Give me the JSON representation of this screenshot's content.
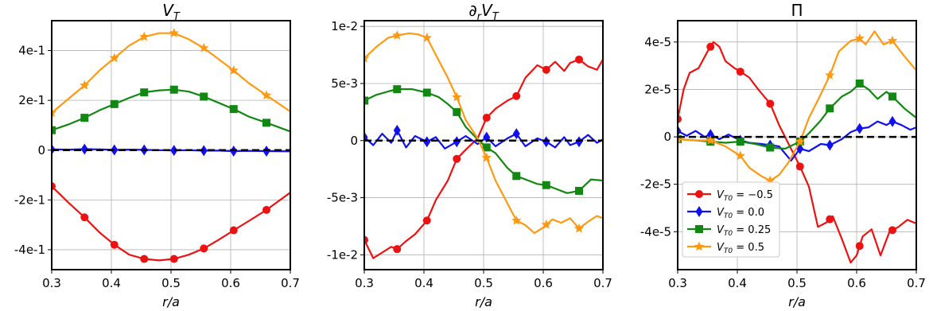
{
  "chart_data": [
    {
      "type": "line",
      "title": "V_T",
      "xlabel": "r/a",
      "xlim": [
        0.3,
        0.7
      ],
      "ylim": [
        -0.48,
        0.52
      ],
      "xticks": [
        0.3,
        0.4,
        0.5,
        0.6,
        0.7
      ],
      "xtick_labels": [
        "0.3",
        "0.4",
        "0.5",
        "0.6",
        "0.7"
      ],
      "yticks": [
        -0.4,
        -0.2,
        0,
        0.2,
        0.4
      ],
      "ytick_labels": [
        "-4e-1",
        "-2e-1",
        "0",
        "2e-1",
        "4e-1"
      ],
      "grid": true,
      "zero_line": 0,
      "series": [
        {
          "name": "V_T0 = -0.5",
          "color": "#ee1111",
          "marker": "circle",
          "x": [
            0.3,
            0.33,
            0.355,
            0.38,
            0.405,
            0.43,
            0.455,
            0.48,
            0.505,
            0.53,
            0.555,
            0.58,
            0.605,
            0.63,
            0.66,
            0.7
          ],
          "y": [
            -0.145,
            -0.215,
            -0.27,
            -0.33,
            -0.38,
            -0.42,
            -0.437,
            -0.443,
            -0.437,
            -0.42,
            -0.395,
            -0.36,
            -0.322,
            -0.285,
            -0.24,
            -0.17
          ],
          "markers_x": [
            0.3,
            0.355,
            0.405,
            0.455,
            0.505,
            0.555,
            0.605,
            0.66
          ]
        },
        {
          "name": "V_T0 = 0.0",
          "color": "#1111ee",
          "marker": "diamond",
          "x": [
            0.3,
            0.33,
            0.355,
            0.38,
            0.405,
            0.43,
            0.455,
            0.48,
            0.505,
            0.53,
            0.555,
            0.58,
            0.605,
            0.63,
            0.66,
            0.7
          ],
          "y": [
            0.003,
            0.002,
            0.004,
            0.003,
            0.001,
            0.002,
            0.001,
            0.0,
            -0.001,
            0.0,
            -0.002,
            -0.002,
            -0.004,
            -0.003,
            -0.004,
            -0.005
          ],
          "markers_x": [
            0.3,
            0.355,
            0.405,
            0.455,
            0.505,
            0.555,
            0.605,
            0.66
          ]
        },
        {
          "name": "V_T0 = 0.25",
          "color": "#118811",
          "marker": "square",
          "x": [
            0.3,
            0.33,
            0.355,
            0.38,
            0.405,
            0.43,
            0.455,
            0.48,
            0.505,
            0.53,
            0.555,
            0.58,
            0.605,
            0.63,
            0.66,
            0.7
          ],
          "y": [
            0.08,
            0.105,
            0.13,
            0.16,
            0.185,
            0.21,
            0.232,
            0.24,
            0.243,
            0.235,
            0.215,
            0.19,
            0.165,
            0.135,
            0.11,
            0.075
          ],
          "markers_x": [
            0.3,
            0.355,
            0.405,
            0.455,
            0.505,
            0.555,
            0.605,
            0.66
          ]
        },
        {
          "name": "V_T0 = 0.5",
          "color": "#ff9911",
          "marker": "star",
          "x": [
            0.3,
            0.33,
            0.355,
            0.38,
            0.405,
            0.43,
            0.455,
            0.48,
            0.505,
            0.53,
            0.555,
            0.58,
            0.605,
            0.63,
            0.66,
            0.7
          ],
          "y": [
            0.15,
            0.21,
            0.26,
            0.32,
            0.37,
            0.42,
            0.455,
            0.47,
            0.47,
            0.445,
            0.41,
            0.365,
            0.32,
            0.27,
            0.22,
            0.155
          ],
          "markers_x": [
            0.3,
            0.355,
            0.405,
            0.455,
            0.505,
            0.555,
            0.605,
            0.66
          ]
        }
      ]
    },
    {
      "type": "line",
      "title": "∂_r V_T",
      "xlabel": "r/a",
      "xlim": [
        0.3,
        0.7
      ],
      "ylim": [
        -0.0113,
        0.0105
      ],
      "xticks": [
        0.3,
        0.4,
        0.5,
        0.6,
        0.7
      ],
      "xtick_labels": [
        "0.3",
        "0.4",
        "0.5",
        "0.6",
        "0.7"
      ],
      "yticks": [
        -0.01,
        -0.005,
        0,
        0.005,
        0.01
      ],
      "ytick_labels": [
        "-1e-2",
        "-5e-3",
        "0",
        "5e-3",
        "1e-2"
      ],
      "grid": true,
      "zero_line": 0,
      "series": [
        {
          "name": "V_T0 = -0.5",
          "color": "#ee1111",
          "marker": "circle",
          "x": [
            0.3,
            0.315,
            0.33,
            0.345,
            0.355,
            0.37,
            0.385,
            0.405,
            0.42,
            0.44,
            0.455,
            0.47,
            0.49,
            0.505,
            0.52,
            0.54,
            0.555,
            0.57,
            0.59,
            0.605,
            0.62,
            0.635,
            0.645,
            0.66,
            0.675,
            0.69,
            0.7
          ],
          "y": [
            -0.0087,
            -0.0103,
            -0.0098,
            -0.0093,
            -0.0095,
            -0.0088,
            -0.0082,
            -0.007,
            -0.0052,
            -0.0035,
            -0.0016,
            -0.0008,
            0.0002,
            0.002,
            0.0028,
            0.0035,
            0.0039,
            0.0055,
            0.0066,
            0.0062,
            0.0069,
            0.0061,
            0.0068,
            0.0071,
            0.0065,
            0.0062,
            0.0071
          ],
          "markers_x": [
            0.3,
            0.355,
            0.405,
            0.455,
            0.505,
            0.555,
            0.605,
            0.66
          ]
        },
        {
          "name": "V_T0 = 0.0",
          "color": "#1111ee",
          "marker": "diamond",
          "x": [
            0.3,
            0.315,
            0.33,
            0.345,
            0.355,
            0.37,
            0.385,
            0.405,
            0.42,
            0.435,
            0.455,
            0.47,
            0.49,
            0.505,
            0.52,
            0.54,
            0.555,
            0.57,
            0.59,
            0.605,
            0.62,
            0.635,
            0.645,
            0.66,
            0.675,
            0.69,
            0.7
          ],
          "y": [
            0.0003,
            -0.0004,
            0.0006,
            -0.0002,
            0.0009,
            -0.0006,
            0.0004,
            -0.0001,
            0.0003,
            -0.0007,
            -0.0001,
            0.0004,
            -0.0003,
            0.0003,
            -0.0005,
            0.0002,
            0.0006,
            -0.0005,
            0.0002,
            -0.0001,
            -0.0006,
            0.0003,
            -0.0004,
            -0.0001,
            0.0005,
            -0.0002,
            0.0001
          ],
          "markers_x": [
            0.3,
            0.355,
            0.405,
            0.455,
            0.505,
            0.555,
            0.605,
            0.66
          ]
        },
        {
          "name": "V_T0 = 0.25",
          "color": "#118811",
          "marker": "square",
          "x": [
            0.3,
            0.32,
            0.34,
            0.355,
            0.38,
            0.405,
            0.425,
            0.44,
            0.455,
            0.47,
            0.49,
            0.505,
            0.52,
            0.54,
            0.555,
            0.575,
            0.59,
            0.605,
            0.625,
            0.64,
            0.66,
            0.68,
            0.7
          ],
          "y": [
            0.0035,
            0.004,
            0.0043,
            0.0045,
            0.0045,
            0.0042,
            0.0038,
            0.0032,
            0.0025,
            0.0012,
            0.0001,
            -0.0006,
            -0.0011,
            -0.0024,
            -0.0031,
            -0.0035,
            -0.0038,
            -0.0039,
            -0.0043,
            -0.0046,
            -0.0044,
            -0.0034,
            -0.0035
          ],
          "markers_x": [
            0.3,
            0.355,
            0.405,
            0.455,
            0.505,
            0.555,
            0.605,
            0.66
          ]
        },
        {
          "name": "V_T0 = 0.5",
          "color": "#ff9911",
          "marker": "star",
          "x": [
            0.3,
            0.32,
            0.34,
            0.355,
            0.375,
            0.39,
            0.405,
            0.42,
            0.44,
            0.455,
            0.47,
            0.49,
            0.505,
            0.52,
            0.54,
            0.555,
            0.57,
            0.585,
            0.6,
            0.615,
            0.63,
            0.645,
            0.66,
            0.675,
            0.69,
            0.7
          ],
          "y": [
            0.0072,
            0.0082,
            0.009,
            0.0092,
            0.0094,
            0.0093,
            0.009,
            0.0075,
            0.0055,
            0.0038,
            0.0018,
            0.0002,
            -0.0015,
            -0.0035,
            -0.0055,
            -0.007,
            -0.0074,
            -0.0081,
            -0.0076,
            -0.0069,
            -0.0072,
            -0.0068,
            -0.0077,
            -0.0071,
            -0.0066,
            -0.0068
          ],
          "markers_x": [
            0.3,
            0.355,
            0.405,
            0.455,
            0.505,
            0.555,
            0.605,
            0.66
          ]
        }
      ]
    },
    {
      "type": "line",
      "title": "Π",
      "xlabel": "r/a",
      "xlim": [
        0.3,
        0.7
      ],
      "ylim": [
        -5.6e-05,
        4.9e-05
      ],
      "xticks": [
        0.3,
        0.4,
        0.5,
        0.6,
        0.7
      ],
      "xtick_labels": [
        "0.3",
        "0.4",
        "0.5",
        "0.6",
        "0.7"
      ],
      "yticks": [
        -4e-05,
        -2e-05,
        0,
        2e-05,
        4e-05
      ],
      "ytick_labels": [
        "-4e-5",
        "-2e-5",
        "0",
        "2e-5",
        "4e-5"
      ],
      "grid": true,
      "zero_line": 0,
      "legend": {
        "position": "lower-left",
        "entries": [
          "V_T0 = −0.5",
          "V_T0 = 0.0",
          "V_T0 = 0.25",
          "V_T0 = 0.5"
        ]
      },
      "series": [
        {
          "name": "V_T0 = -0.5",
          "color": "#ee1111",
          "marker": "circle",
          "x": [
            0.3,
            0.31,
            0.32,
            0.335,
            0.35,
            0.36,
            0.37,
            0.38,
            0.395,
            0.405,
            0.42,
            0.435,
            0.455,
            0.47,
            0.49,
            0.505,
            0.52,
            0.535,
            0.55,
            0.56,
            0.575,
            0.59,
            0.6,
            0.61,
            0.625,
            0.64,
            0.655,
            0.67,
            0.685,
            0.7
          ],
          "y": [
            7.5e-06,
            2e-05,
            2.7e-05,
            2.9e-05,
            3.6e-05,
            4e-05,
            3.8e-05,
            3.2e-05,
            2.9e-05,
            2.75e-05,
            2.5e-05,
            2e-05,
            1.4e-05,
            5e-06,
            -5e-06,
            -1.25e-05,
            -2.1e-05,
            -3.8e-05,
            -3.6e-05,
            -3.35e-05,
            -4.3e-05,
            -5.3e-05,
            -5e-05,
            -4.2e-05,
            -3.9e-05,
            -5e-05,
            -4e-05,
            -3.8e-05,
            -3.5e-05,
            -3.65e-05
          ],
          "markers_x": [
            0.3,
            0.355,
            0.405,
            0.455,
            0.505,
            0.555,
            0.605,
            0.66
          ]
        },
        {
          "name": "V_T0 = 0.0",
          "color": "#1111ee",
          "marker": "diamond",
          "x": [
            0.3,
            0.315,
            0.33,
            0.345,
            0.355,
            0.37,
            0.385,
            0.405,
            0.42,
            0.44,
            0.455,
            0.47,
            0.49,
            0.505,
            0.52,
            0.54,
            0.555,
            0.575,
            0.59,
            0.605,
            0.62,
            0.635,
            0.65,
            0.66,
            0.675,
            0.69,
            0.7
          ],
          "y": [
            2.5e-06,
            5e-07,
            2.5e-06,
            0.0,
            1e-06,
            -1e-06,
            1e-06,
            -1.5e-06,
            -2.5e-06,
            -3e-06,
            -3.5e-06,
            -4e-06,
            -1e-05,
            -5e-06,
            -6e-06,
            -3e-06,
            -3.5e-06,
            -1e-06,
            2e-06,
            3.5e-06,
            4e-06,
            6.5e-06,
            5e-06,
            6.5e-06,
            5e-06,
            3e-06,
            4e-06
          ],
          "markers_x": [
            0.3,
            0.355,
            0.405,
            0.455,
            0.505,
            0.555,
            0.605,
            0.66
          ]
        },
        {
          "name": "V_T0 = 0.25",
          "color": "#118811",
          "marker": "square",
          "x": [
            0.3,
            0.33,
            0.355,
            0.38,
            0.405,
            0.43,
            0.455,
            0.48,
            0.505,
            0.52,
            0.54,
            0.555,
            0.575,
            0.59,
            0.605,
            0.62,
            0.635,
            0.65,
            0.66,
            0.68,
            0.7
          ],
          "y": [
            -1e-06,
            -1.5e-06,
            -2e-06,
            -2.5e-06,
            -2e-06,
            -3e-06,
            -4.5e-06,
            -5e-06,
            -2e-06,
            1.5e-06,
            7e-06,
            1.2e-05,
            1.7e-05,
            1.9e-05,
            2.25e-05,
            2e-05,
            1.6e-05,
            1.9e-05,
            1.7e-05,
            1.2e-05,
            8e-06
          ],
          "markers_x": [
            0.3,
            0.355,
            0.405,
            0.455,
            0.505,
            0.555,
            0.605,
            0.66
          ]
        },
        {
          "name": "V_T0 = 0.5",
          "color": "#ff9911",
          "marker": "star",
          "x": [
            0.3,
            0.33,
            0.355,
            0.38,
            0.405,
            0.42,
            0.44,
            0.455,
            0.47,
            0.485,
            0.505,
            0.52,
            0.54,
            0.555,
            0.57,
            0.59,
            0.605,
            0.615,
            0.63,
            0.645,
            0.66,
            0.68,
            0.7
          ],
          "y": [
            -1e-06,
            -1.5e-06,
            -1.5e-06,
            -4e-06,
            -8e-06,
            -1.3e-05,
            -1.65e-05,
            -1.85e-05,
            -1.6e-05,
            -1.1e-05,
            -2e-06,
            8e-06,
            1.8e-05,
            2.6e-05,
            3.6e-05,
            4.05e-05,
            4.15e-05,
            3.9e-05,
            4.45e-05,
            3.9e-05,
            4.05e-05,
            3.4e-05,
            2.8e-05
          ],
          "markers_x": [
            0.3,
            0.355,
            0.405,
            0.455,
            0.505,
            0.555,
            0.605,
            0.66
          ]
        }
      ]
    }
  ]
}
